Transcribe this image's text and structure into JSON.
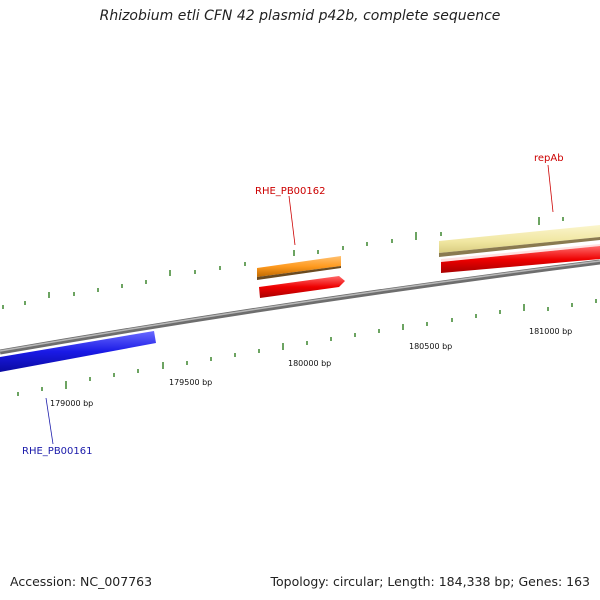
{
  "title": "Rhizobium etli CFN 42 plasmid p42b, complete sequence",
  "footer": {
    "accession": "Accession: NC_007763",
    "summary": "Topology: circular; Length: 184,338 bp; Genes: 163"
  },
  "position_labels": [
    "179000 bp",
    "179500 bp",
    "180000 bp",
    "180500 bp",
    "181000 bp"
  ],
  "gene_labels": [
    "RHE_PB00162",
    "repAb",
    "RHE_PB00161"
  ],
  "colors": {
    "backbone": "#8a8a8a",
    "tick": "#2e7d1e",
    "orange_feature": "#ff9a1f",
    "red_feature": "#ee0000",
    "cream_feature": "#f0e6a0",
    "blue_feature": "#1a1ae6",
    "red_label": "#cc0000",
    "blue_label": "#1a1aaa"
  }
}
